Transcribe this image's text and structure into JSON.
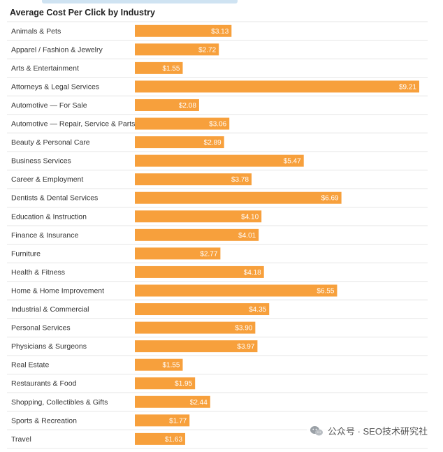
{
  "chart_data": {
    "type": "bar",
    "orientation": "horizontal",
    "title": "Average Cost Per Click by Industry",
    "categories": [
      "Animals & Pets",
      "Apparel / Fashion & Jewelry",
      "Arts & Entertainment",
      "Attorneys & Legal Services",
      "Automotive — For Sale",
      "Automotive — Repair, Service & Parts",
      "Beauty & Personal Care",
      "Business Services",
      "Career & Employment",
      "Dentists & Dental Services",
      "Education & Instruction",
      "Finance & Insurance",
      "Furniture",
      "Health & Fitness",
      "Home & Home Improvement",
      "Industrial & Commercial",
      "Personal Services",
      "Physicians & Surgeons",
      "Real Estate",
      "Restaurants & Food",
      "Shopping, Collectibles & Gifts",
      "Sports & Recreation",
      "Travel"
    ],
    "values": [
      3.13,
      2.72,
      1.55,
      9.21,
      2.08,
      3.06,
      2.89,
      5.47,
      3.78,
      6.69,
      4.1,
      4.01,
      2.77,
      4.18,
      6.55,
      4.35,
      3.9,
      3.97,
      1.55,
      1.95,
      2.44,
      1.77,
      1.63
    ],
    "value_labels": [
      "$3.13",
      "$2.72",
      "$1.55",
      "$9.21",
      "$2.08",
      "$3.06",
      "$2.89",
      "$5.47",
      "$3.78",
      "$6.69",
      "$4.10",
      "$4.01",
      "$2.77",
      "$4.18",
      "$6.55",
      "$4.35",
      "$3.90",
      "$3.97",
      "$1.55",
      "$1.95",
      "$2.44",
      "$1.77",
      "$1.63"
    ],
    "xlim": [
      0,
      9.21
    ],
    "bar_color": "#f7a03c",
    "grid_color": "#e6e6e6"
  },
  "watermark": {
    "icon": "wechat-icon",
    "text": "公众号 · SEO技术研究社"
  }
}
